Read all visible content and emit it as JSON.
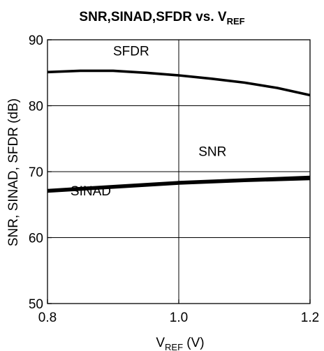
{
  "chart_data": {
    "type": "line",
    "title": {
      "main": "SNR,SINAD,SFDR vs. V",
      "sub": "REF"
    },
    "xlabel": {
      "main": "V",
      "sub": "REF",
      "unit": " (V)"
    },
    "ylabel": "SNR, SINAD, SFDR (dB)",
    "xlim": [
      0.8,
      1.2
    ],
    "ylim": [
      50,
      90
    ],
    "x_ticks": [
      0.8,
      1.0,
      1.2
    ],
    "x_tick_labels": [
      "0.8",
      "1.0",
      "1.2"
    ],
    "y_ticks": [
      50,
      60,
      70,
      80,
      90
    ],
    "y_tick_labels": [
      "50",
      "60",
      "70",
      "80",
      "90"
    ],
    "grid": {
      "x": [
        1.0
      ],
      "y": [
        60,
        70,
        80
      ]
    },
    "series": [
      {
        "key": "sfdr",
        "x": [
          0.8,
          0.85,
          0.9,
          0.95,
          1.0,
          1.05,
          1.1,
          1.15,
          1.2
        ],
        "y": [
          85.1,
          85.3,
          85.3,
          85.0,
          84.6,
          84.1,
          83.5,
          82.7,
          81.6
        ]
      },
      {
        "key": "snr",
        "x": [
          0.8,
          0.9,
          1.0,
          1.1,
          1.2
        ],
        "y": [
          67.2,
          67.8,
          68.4,
          68.8,
          69.2
        ]
      },
      {
        "key": "sinad",
        "x": [
          0.8,
          0.9,
          1.0,
          1.1,
          1.2
        ],
        "y": [
          67.0,
          67.6,
          68.2,
          68.6,
          68.9
        ]
      }
    ],
    "annotations": [
      {
        "text": "SFDR",
        "x": 0.9,
        "y": 87.6
      },
      {
        "text": "SNR",
        "x": 1.03,
        "y": 72.4
      },
      {
        "text": "SINAD",
        "x": 0.835,
        "y": 66.4
      }
    ]
  }
}
